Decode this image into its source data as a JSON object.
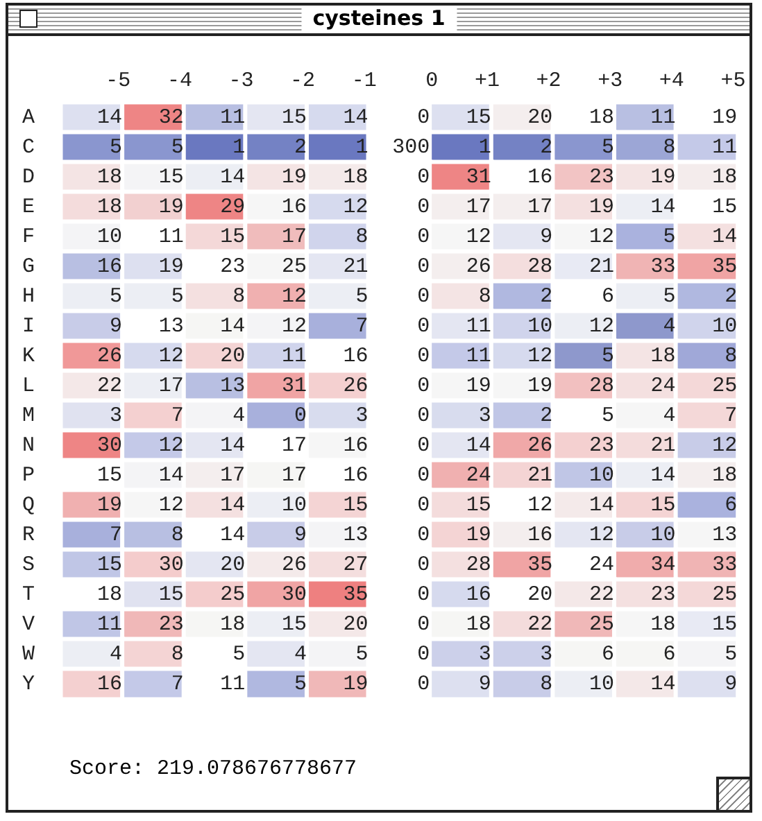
{
  "chart_data": {
    "type": "heatmap",
    "title": "cysteines 1",
    "categories": [
      "-5",
      "-4",
      "-3",
      "-2",
      "-1",
      "0",
      "+1",
      "+2",
      "+3",
      "+4",
      "+5"
    ],
    "y_categories": [
      "A",
      "C",
      "D",
      "E",
      "F",
      "G",
      "H",
      "I",
      "K",
      "L",
      "M",
      "N",
      "P",
      "Q",
      "R",
      "S",
      "T",
      "V",
      "W",
      "Y"
    ],
    "cells": [
      [
        14,
        32,
        11,
        15,
        14,
        0,
        15,
        20,
        18,
        11,
        19
      ],
      [
        5,
        5,
        1,
        2,
        1,
        300,
        1,
        2,
        5,
        8,
        11
      ],
      [
        18,
        15,
        14,
        19,
        18,
        0,
        31,
        16,
        23,
        19,
        18
      ],
      [
        18,
        19,
        29,
        16,
        12,
        0,
        17,
        17,
        19,
        14,
        15
      ],
      [
        10,
        11,
        15,
        17,
        8,
        0,
        12,
        9,
        12,
        5,
        14
      ],
      [
        16,
        19,
        23,
        25,
        21,
        0,
        26,
        28,
        21,
        33,
        35
      ],
      [
        5,
        5,
        8,
        12,
        5,
        0,
        8,
        2,
        6,
        5,
        2
      ],
      [
        9,
        13,
        14,
        12,
        7,
        0,
        11,
        10,
        12,
        4,
        10
      ],
      [
        26,
        12,
        20,
        11,
        16,
        0,
        11,
        12,
        5,
        18,
        8
      ],
      [
        22,
        17,
        13,
        31,
        26,
        0,
        19,
        19,
        28,
        24,
        25
      ],
      [
        3,
        7,
        4,
        0,
        3,
        0,
        3,
        2,
        5,
        4,
        7
      ],
      [
        30,
        12,
        14,
        17,
        16,
        0,
        14,
        26,
        23,
        21,
        12
      ],
      [
        15,
        14,
        17,
        17,
        16,
        0,
        24,
        21,
        10,
        14,
        18
      ],
      [
        19,
        12,
        14,
        10,
        15,
        0,
        15,
        12,
        14,
        15,
        6
      ],
      [
        7,
        8,
        14,
        9,
        13,
        0,
        19,
        16,
        12,
        10,
        13
      ],
      [
        15,
        30,
        20,
        26,
        27,
        0,
        28,
        35,
        24,
        34,
        33
      ],
      [
        18,
        15,
        25,
        30,
        35,
        0,
        16,
        20,
        22,
        23,
        25
      ],
      [
        11,
        23,
        18,
        15,
        20,
        0,
        18,
        22,
        25,
        18,
        15
      ],
      [
        4,
        8,
        5,
        4,
        5,
        0,
        3,
        3,
        6,
        6,
        5
      ],
      [
        16,
        7,
        11,
        5,
        19,
        0,
        9,
        8,
        10,
        14,
        9
      ]
    ],
    "colors": [
      [
        "#dde0f0",
        "#ee8585",
        "#b8bfe2",
        "#e4e6f2",
        "#d6daee",
        null,
        "#dde0f0",
        "#f4eeee",
        null,
        "#b8bfe2",
        null
      ],
      [
        "#8a96cf",
        "#8a96cf",
        "#6a78c0",
        "#7482c4",
        "#6a78c0",
        null,
        "#6a78c0",
        "#7482c4",
        "#8a96cf",
        "#9ca6d6",
        "#c4c9e8"
      ],
      [
        "#f4e4e4",
        "#f4f4f6",
        "#eceef4",
        "#f4e4e4",
        "#f4eaea",
        null,
        "#ee8585",
        null,
        "#f2c4c4",
        "#f4e4e4",
        "#f4ecec"
      ],
      [
        "#f4dcdc",
        "#f2d0d0",
        "#ee8585",
        "#f6f6f6",
        "#d6daee",
        null,
        "#f4eeee",
        "#f4eeee",
        "#f4e0e0",
        "#eceef4",
        null
      ],
      [
        "#f4f4f6",
        null,
        "#f4d8d8",
        "#f0bcbc",
        "#d0d4ec",
        null,
        "#f6f6f6",
        "#e4e6f2",
        "#f6f6f6",
        "#aab2de",
        "#f4e0e0"
      ],
      [
        "#b8bfe2",
        "#dde0f0",
        null,
        "#f6f6f6",
        "#e4e6f2",
        null,
        "#f4eeee",
        "#f4dede",
        "#e8eaf4",
        "#f0b4b4",
        "#f0a4a4"
      ],
      [
        "#eceef4",
        "#eceef4",
        "#f4e0e0",
        "#f0b0b0",
        "#eceef4",
        null,
        "#f4e4e4",
        "#b0b8e0",
        null,
        "#eceef4",
        "#b0b8e0"
      ],
      [
        "#c8cce8",
        null,
        "#f6f6f4",
        "#f4f4f6",
        "#a8b0dc",
        null,
        "#e4e6f2",
        "#d0d4ec",
        "#eceef4",
        "#8e98cc",
        "#d0d4ec"
      ],
      [
        "#f09898",
        "#d6daee",
        "#f4d4d4",
        "#d0d4ec",
        null,
        null,
        "#c4c9e8",
        "#d6daee",
        "#8e98cc",
        "#f4e4e4",
        "#a0a8d8"
      ],
      [
        "#f4e8e8",
        "#eceef4",
        "#b8bfe2",
        "#f0a4a4",
        "#f4d0d0",
        null,
        "#f6f6f6",
        "#f6f6f6",
        "#f2c0c0",
        "#f4e0e0",
        "#f4d8d8"
      ],
      [
        "#e0e2f0",
        "#f4d0d0",
        "#f4f4f6",
        "#a8b0dc",
        "#d8dcee",
        null,
        "#d8dcee",
        "#c0c6e6",
        null,
        "#f6f6f6",
        "#f4d8d8"
      ],
      [
        "#ee8585",
        "#c4c9e8",
        "#e4e6f2",
        null,
        "#f6f6f6",
        null,
        "#e4e6f2",
        "#f0a8a8",
        "#f4d0d0",
        "#f4dcdc",
        "#c8cce8"
      ],
      [
        null,
        "#f4f4f6",
        "#f4eeee",
        "#f6f6f4",
        null,
        null,
        "#f0b0b0",
        "#f4d4d4",
        "#c0c6e6",
        "#eceef4",
        "#f4eeee"
      ],
      [
        "#f0b0b0",
        "#f6f6f6",
        "#f4e0e0",
        "#eceef4",
        "#f4d4d4",
        null,
        "#f4dcdc",
        null,
        "#f4eaea",
        "#f4d4d4",
        "#aab2de"
      ],
      [
        "#a8b0dc",
        "#b8bfe2",
        null,
        "#c8cce8",
        "#f4f4f6",
        null,
        "#f4d4d4",
        "#f4eeee",
        "#e4e6f2",
        "#c8cce8",
        "#f6f6f6"
      ],
      [
        "#c0c6e6",
        "#f4cccc",
        "#e4e6f2",
        "#f4eaea",
        "#f4dede",
        null,
        "#f4e0e0",
        "#f0a4a4",
        null,
        "#f0acac",
        "#f0b4b4"
      ],
      [
        null,
        "#e0e2f0",
        "#f4cccc",
        "#f0a4a4",
        "#ee8080",
        null,
        "#d6daee",
        null,
        "#f4e8e8",
        "#f4e0e0",
        "#f4d8d8"
      ],
      [
        "#c0c6e6",
        "#f0b8b8",
        "#f6f6f4",
        "#eceef4",
        "#f4e8e8",
        null,
        "#f6f6f4",
        "#f4dcdc",
        "#f0b8b8",
        "#f6f6f6",
        "#e8eaf4"
      ],
      [
        "#eceef4",
        "#f4d4d4",
        null,
        "#e4e6f2",
        "#f4f4f6",
        null,
        "#ccd0ea",
        "#ccd0ea",
        "#f6f6f4",
        "#f6f6f4",
        "#f4f4f6"
      ],
      [
        "#f4d0d0",
        "#c4c9e8",
        null,
        "#b0b8e0",
        "#f0b8b8",
        null,
        "#dde0f0",
        "#c8cce8",
        "#eceef4",
        "#f4e8e8",
        "#dde0f0"
      ]
    ],
    "data_labels": true,
    "annotations": [
      "Score: 219.078676778677"
    ]
  }
}
